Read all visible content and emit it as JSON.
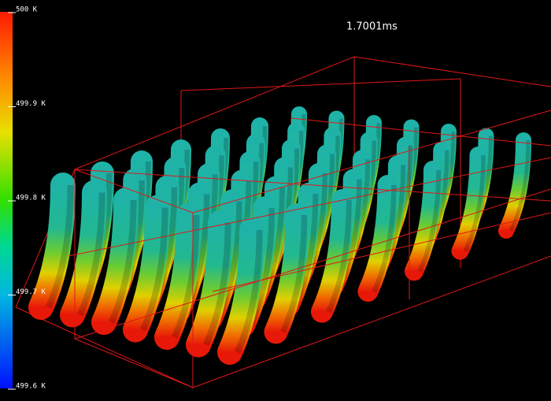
{
  "time_label": "1.7001ms",
  "colorbar": {
    "labels": [
      "500 K",
      "499.9 K",
      "499.8 K",
      "499.7 K",
      "499.6 K"
    ]
  }
}
